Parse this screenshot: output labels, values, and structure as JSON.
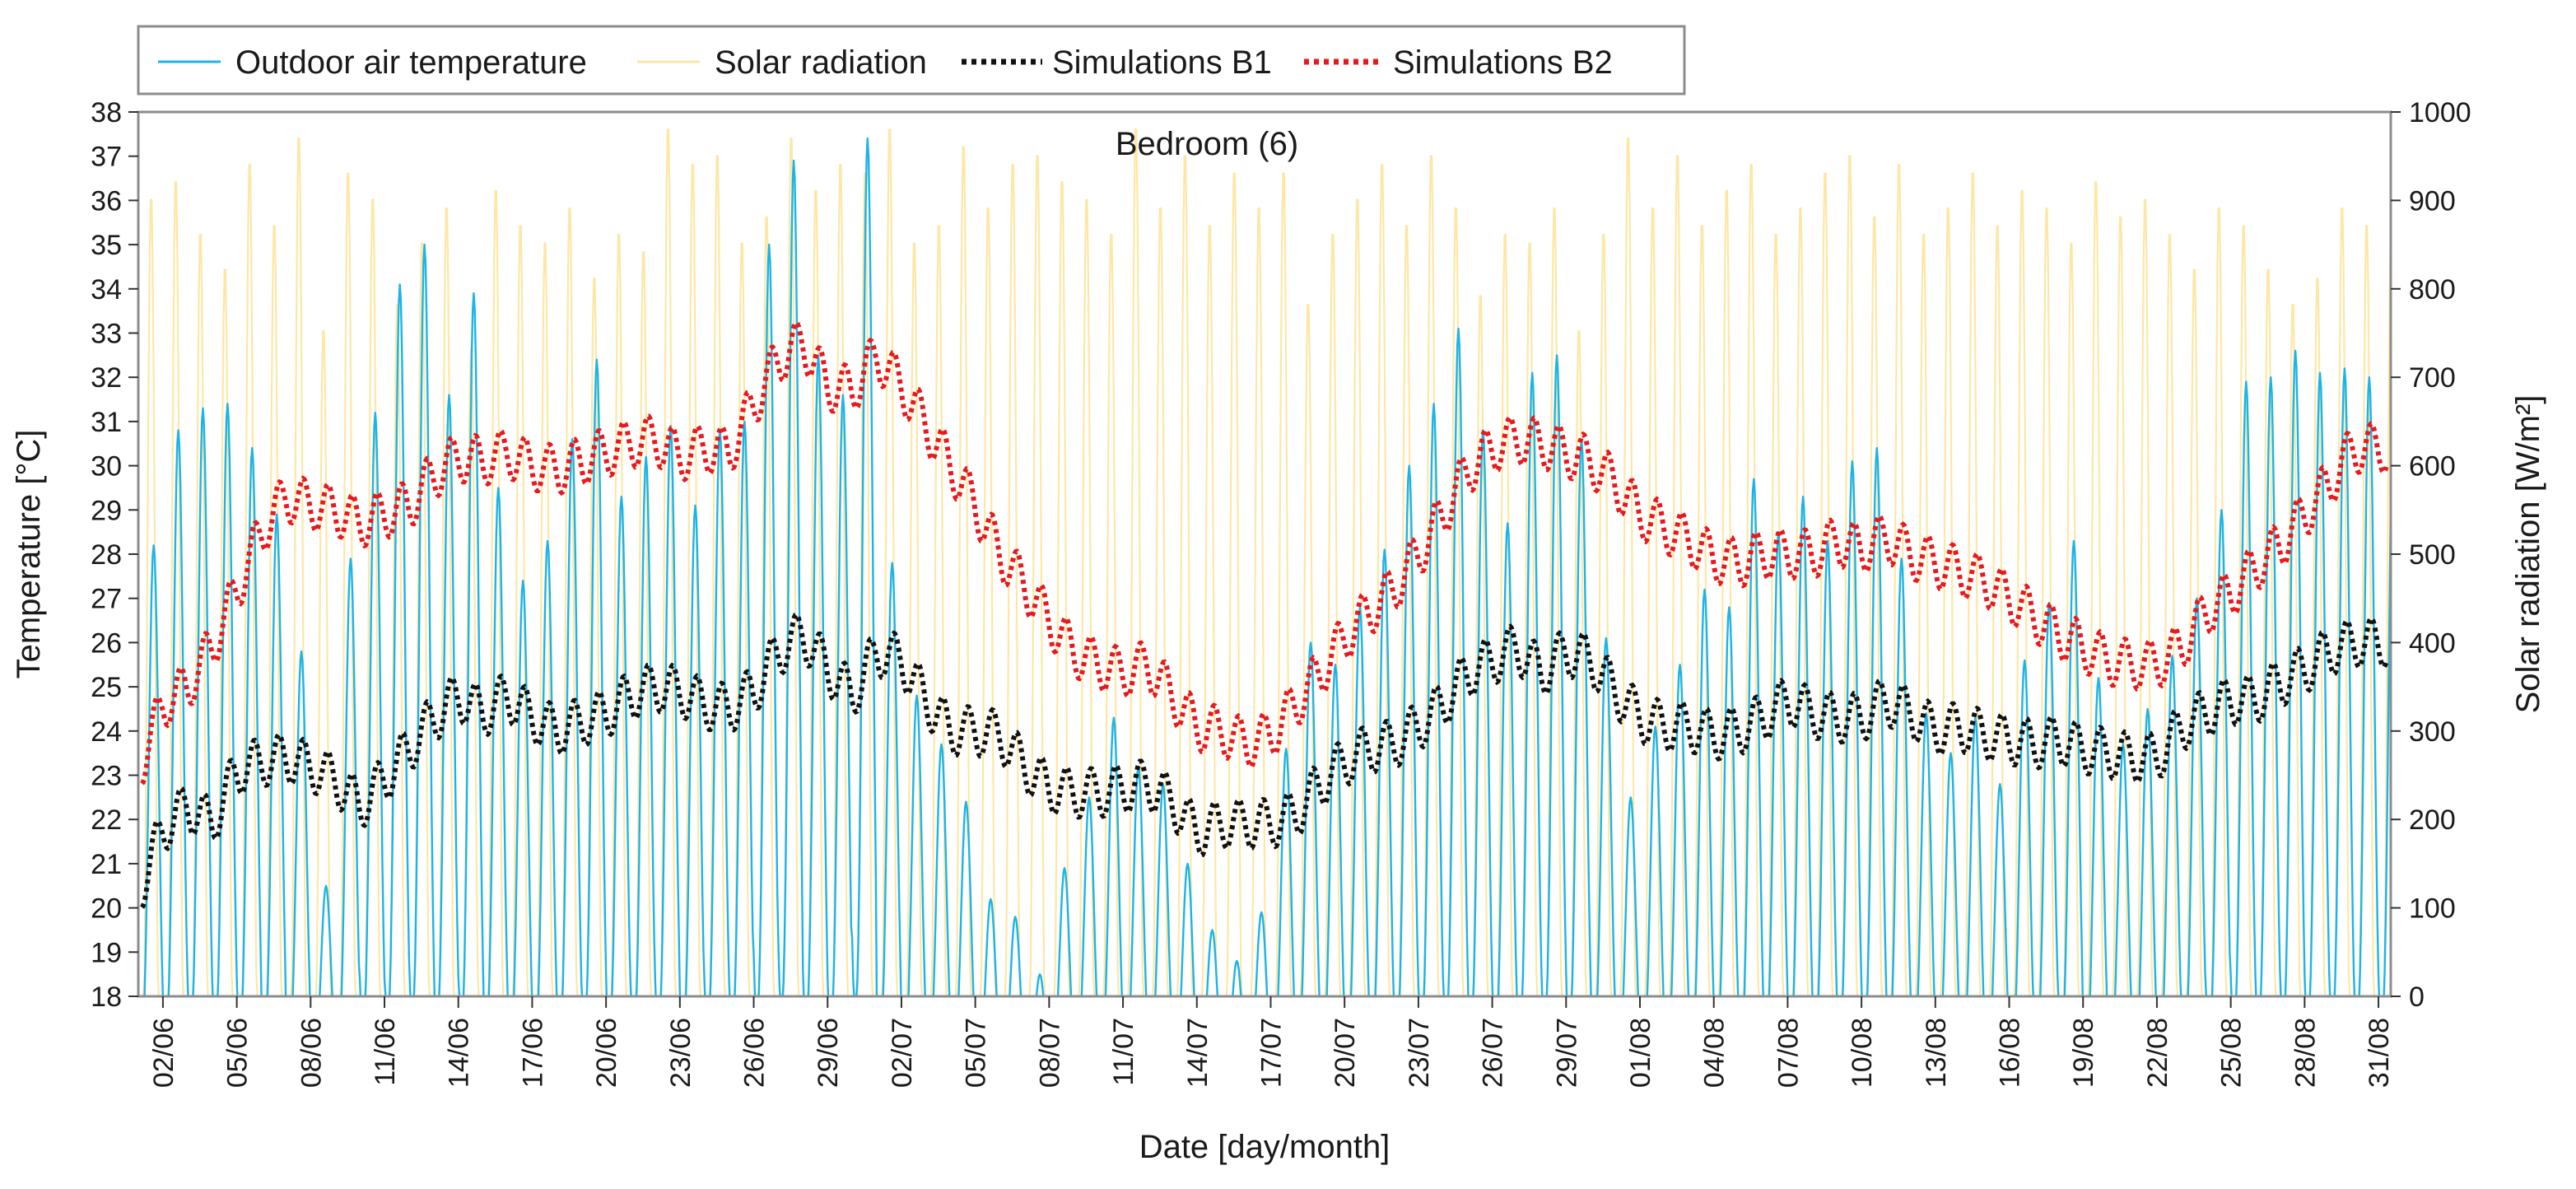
{
  "chart_data": {
    "type": "line",
    "title": "Bedroom (6)",
    "xlabel": "Date [day/month]",
    "ylabel": "Temperature [°C]",
    "y2label": "Solar radiation [W/m²]",
    "ylim": [
      18,
      38
    ],
    "y2lim": [
      0,
      1000
    ],
    "xlim_day_index": [
      0.0,
      91.5
    ],
    "y_ticks": [
      18,
      19,
      20,
      21,
      22,
      23,
      24,
      25,
      26,
      27,
      28,
      29,
      30,
      31,
      32,
      33,
      34,
      35,
      36,
      37,
      38
    ],
    "y2_ticks": [
      0,
      100,
      200,
      300,
      400,
      500,
      600,
      700,
      800,
      900,
      1000
    ],
    "x_tick_labels": [
      "02/06",
      "05/06",
      "08/06",
      "11/06",
      "14/06",
      "17/06",
      "20/06",
      "23/06",
      "26/06",
      "29/06",
      "02/07",
      "05/07",
      "08/07",
      "11/07",
      "14/07",
      "17/07",
      "20/07",
      "23/07",
      "26/07",
      "29/07",
      "01/08",
      "04/08",
      "07/08",
      "10/08",
      "13/08",
      "16/08",
      "19/08",
      "22/08",
      "25/08",
      "28/08",
      "31/08"
    ],
    "x_tick_day_index": [
      1,
      4,
      7,
      10,
      13,
      16,
      19,
      22,
      25,
      28,
      31,
      34,
      37,
      40,
      43,
      46,
      49,
      52,
      55,
      58,
      61,
      64,
      67,
      70,
      73,
      76,
      79,
      82,
      85,
      88,
      91
    ],
    "legend_position": "top-left",
    "grid": false,
    "series": [
      {
        "name": "Outdoor air temperature",
        "axis": "left",
        "color": "#1bb4e6",
        "style": "solid",
        "note": "daily cycle, daily max values °C, min ~17",
        "daily_max": [
          28.2,
          30.8,
          31.3,
          31.4,
          30.4,
          28.9,
          25.8,
          20.5,
          27.9,
          31.2,
          34.1,
          35.0,
          31.6,
          33.9,
          29.5,
          27.4,
          28.3,
          30.6,
          32.4,
          29.3,
          30.2,
          30.9,
          29.1,
          30.8,
          31.0,
          35.0,
          36.9,
          32.5,
          31.6,
          37.4,
          27.8,
          24.8,
          23.7,
          22.4,
          20.2,
          19.8,
          18.5,
          20.9,
          22.5,
          24.3,
          23.2,
          22.8,
          21.0,
          19.5,
          18.8,
          19.9,
          23.6,
          26.0,
          25.5,
          26.8,
          28.1,
          30.0,
          31.4,
          33.1,
          30.8,
          28.7,
          32.1,
          32.5,
          30.6,
          26.1,
          22.5,
          24.1,
          25.5,
          27.2,
          26.8,
          29.7,
          28.5,
          29.3,
          28.3,
          30.1,
          30.4,
          27.9,
          24.4,
          23.5,
          24.3,
          22.8,
          25.6,
          26.9,
          28.3,
          25.2,
          23.7,
          24.5,
          25.7,
          27.0,
          29.0,
          31.9,
          32.0,
          32.6,
          32.1,
          32.2,
          32.0
        ]
      },
      {
        "name": "Solar radiation",
        "axis": "right",
        "color": "#fde7a6",
        "style": "solid",
        "note": "daily peak values W/m²",
        "daily_peak": [
          910,
          930,
          870,
          830,
          950,
          880,
          980,
          760,
          940,
          910,
          790,
          860,
          900,
          740,
          920,
          880,
          860,
          900,
          820,
          870,
          850,
          990,
          950,
          960,
          860,
          890,
          980,
          920,
          950,
          940,
          990,
          860,
          880,
          970,
          900,
          950,
          960,
          930,
          910,
          870,
          990,
          900,
          960,
          880,
          940,
          900,
          940,
          790,
          870,
          910,
          950,
          880,
          960,
          900,
          800,
          870,
          860,
          900,
          760,
          870,
          980,
          900,
          960,
          880,
          920,
          950,
          870,
          900,
          940,
          960,
          890,
          950,
          870,
          900,
          940,
          880,
          920,
          900,
          860,
          930,
          890,
          910,
          870,
          830,
          900,
          880,
          830,
          790,
          820,
          900,
          880
        ]
      },
      {
        "name": "Simulations B1",
        "axis": "left",
        "color": "#111111",
        "style": "dotted",
        "daily_mean": [
          20.3,
          21.8,
          22.3,
          21.9,
          23.1,
          23.3,
          23.4,
          23.2,
          22.9,
          22.3,
          22.9,
          23.6,
          24.3,
          24.8,
          24.4,
          24.8,
          24.3,
          24.0,
          24.2,
          24.4,
          24.8,
          25.0,
          24.9,
          24.6,
          24.5,
          24.9,
          25.8,
          26.2,
          25.4,
          24.8,
          25.8,
          25.6,
          24.7,
          24.0,
          24.0,
          23.9,
          23.2,
          22.7,
          22.6,
          22.6,
          22.7,
          22.8,
          22.4,
          21.7,
          21.9,
          21.9,
          21.9,
          22.1,
          22.8,
          23.3,
          23.6,
          23.7,
          24.1,
          24.6,
          25.3,
          25.6,
          25.9,
          25.3,
          25.8,
          25.6,
          24.9,
          24.3,
          24.1,
          24.1,
          23.9,
          24.0,
          24.3,
          24.7,
          24.4,
          24.3,
          24.3,
          24.7,
          24.4,
          24.0,
          24.1,
          23.9,
          23.8,
          23.7,
          23.8,
          23.6,
          23.5,
          23.4,
          23.4,
          24.1,
          24.4,
          24.7,
          24.7,
          25.1,
          25.4,
          25.8,
          26.0
        ]
      },
      {
        "name": "Simulations B2",
        "axis": "left",
        "color": "#e8191c",
        "style": "dotted",
        "daily_mean": [
          23.1,
          24.6,
          25.0,
          25.9,
          27.2,
          28.5,
          29.3,
          29.1,
          29.0,
          28.7,
          28.9,
          29.1,
          29.8,
          30.2,
          30.1,
          30.3,
          30.0,
          29.9,
          30.1,
          30.3,
          30.5,
          30.6,
          30.2,
          30.4,
          30.3,
          31.4,
          32.4,
          32.8,
          31.8,
          31.7,
          32.5,
          31.8,
          30.9,
          30.0,
          29.1,
          28.0,
          27.3,
          26.5,
          25.8,
          25.5,
          25.3,
          25.5,
          24.8,
          24.1,
          24.0,
          23.7,
          23.9,
          24.6,
          25.3,
          26.1,
          26.7,
          27.2,
          28.0,
          28.9,
          29.9,
          30.4,
          30.6,
          30.5,
          30.3,
          30.1,
          29.6,
          28.9,
          28.6,
          28.3,
          27.9,
          27.8,
          28.0,
          28.0,
          28.0,
          28.3,
          28.1,
          28.4,
          28.0,
          27.8,
          27.6,
          27.4,
          27.0,
          26.6,
          26.2,
          25.9,
          25.6,
          25.5,
          25.5,
          25.9,
          26.7,
          27.1,
          27.7,
          28.2,
          28.9,
          29.6,
          30.4
        ]
      }
    ]
  }
}
